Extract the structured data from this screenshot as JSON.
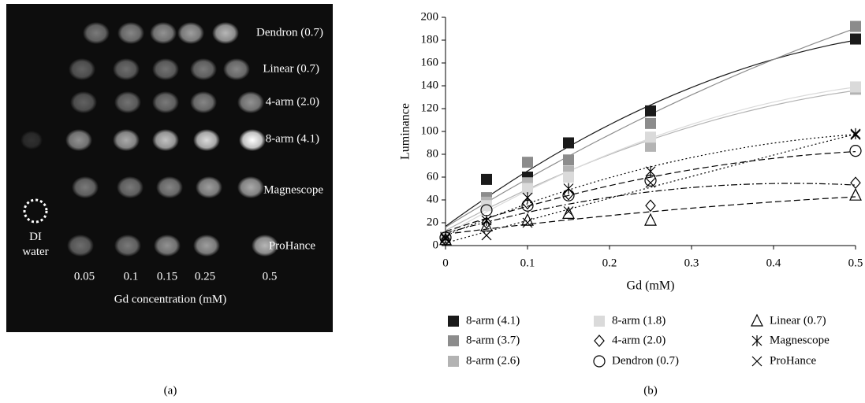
{
  "image_panel": {
    "row_labels": [
      "Dendron (0.7)",
      "Linear (0.7)",
      "4-arm (2.0)",
      "8-arm (4.1)",
      "Magnescope",
      "ProHance"
    ],
    "reference_label": "DI water",
    "column_labels": [
      "0.05",
      "0.1",
      "0.15",
      "0.25",
      "0.5"
    ],
    "axis_label": "Gd concentration (mM)"
  },
  "captions": [
    "(a)",
    "(b)"
  ],
  "chart_data": {
    "type": "scatter",
    "x_label": "Gd (mM)",
    "y_label": "Luminance",
    "x": [
      0,
      0.05,
      0.1,
      0.15,
      0.25,
      0.5
    ],
    "xlim": [
      0,
      0.5
    ],
    "xticks": [
      0,
      0.1,
      0.2,
      0.3,
      0.4,
      0.5
    ],
    "ylim": [
      0,
      200
    ],
    "yticks": [
      0,
      20,
      40,
      60,
      80,
      100,
      120,
      140,
      160,
      180,
      200
    ],
    "grid": false,
    "trendline": "quadratic",
    "legend": "bottom",
    "series": [
      {
        "name": "8-arm (4.1)",
        "color": "#1a1a1a",
        "marker": "filled-square",
        "line_style": "solid",
        "values": [
          7,
          58,
          60,
          90,
          118,
          181
        ]
      },
      {
        "name": "8-arm (3.7)",
        "color": "#8c8c8c",
        "marker": "filled-square",
        "line_style": "solid",
        "values": [
          7,
          42,
          73,
          75,
          107,
          192
        ]
      },
      {
        "name": "8-arm (2.6)",
        "color": "#b3b3b3",
        "marker": "filled-square",
        "line_style": "solid",
        "values": [
          6,
          38,
          55,
          65,
          87,
          137
        ]
      },
      {
        "name": "8-arm (1.8)",
        "color": "#dadada",
        "marker": "filled-square",
        "line_style": "solid",
        "values": [
          6,
          35,
          50,
          60,
          95,
          139
        ]
      },
      {
        "name": "4-arm (2.0)",
        "color": "#000000",
        "marker": "diamond",
        "line_style": "dash-dot",
        "values": [
          5,
          20,
          37,
          45,
          35,
          55
        ]
      },
      {
        "name": "Dendron (0.7)",
        "color": "#000000",
        "marker": "circle",
        "line_style": "dashed",
        "values": [
          7,
          31,
          35,
          44,
          57,
          83
        ]
      },
      {
        "name": "Linear (0.7)",
        "color": "#000000",
        "marker": "triangle",
        "line_style": "dashed",
        "values": [
          5,
          17,
          22,
          28,
          22,
          44
        ]
      },
      {
        "name": "Magnescope",
        "color": "#000000",
        "marker": "asterisk",
        "line_style": "dotted",
        "values": [
          7,
          22,
          42,
          50,
          65,
          98
        ]
      },
      {
        "name": "ProHance",
        "color": "#000000",
        "marker": "cross",
        "line_style": "dotted",
        "values": [
          6,
          9,
          20,
          30,
          55,
          97
        ]
      }
    ]
  }
}
